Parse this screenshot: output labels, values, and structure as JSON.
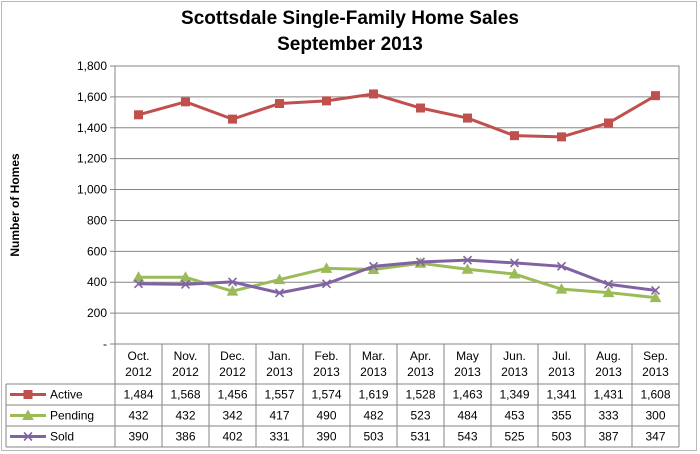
{
  "chart_data": {
    "type": "line",
    "title": "Scottsdale Single-Family Home Sales",
    "subtitle": "September 2013",
    "ylabel": "Number of Homes",
    "xlabel": "",
    "ylim": [
      0,
      1800
    ],
    "yticks": [
      0,
      200,
      400,
      600,
      800,
      1000,
      1200,
      1400,
      1600,
      1800
    ],
    "ytick_labels": [
      "-",
      "200",
      "400",
      "600",
      "800",
      "1,000",
      "1,200",
      "1,400",
      "1,600",
      "1,800"
    ],
    "grid": true,
    "legend": "data-table",
    "categories": [
      {
        "month": "Oct.",
        "year": "2012"
      },
      {
        "month": "Nov.",
        "year": "2012"
      },
      {
        "month": "Dec.",
        "year": "2012"
      },
      {
        "month": "Jan.",
        "year": "2013"
      },
      {
        "month": "Feb.",
        "year": "2013"
      },
      {
        "month": "Mar.",
        "year": "2013"
      },
      {
        "month": "Apr.",
        "year": "2013"
      },
      {
        "month": "May",
        "year": "2013"
      },
      {
        "month": "Jun.",
        "year": "2013"
      },
      {
        "month": "Jul.",
        "year": "2013"
      },
      {
        "month": "Aug.",
        "year": "2013"
      },
      {
        "month": "Sep.",
        "year": "2013"
      }
    ],
    "series": [
      {
        "name": "Active",
        "color": "#c0504d",
        "marker": "square",
        "values": [
          1484,
          1568,
          1456,
          1557,
          1574,
          1619,
          1528,
          1463,
          1349,
          1341,
          1431,
          1608
        ],
        "labels": [
          "1,484",
          "1,568",
          "1,456",
          "1,557",
          "1,574",
          "1,619",
          "1,528",
          "1,463",
          "1,349",
          "1,341",
          "1,431",
          "1,608"
        ]
      },
      {
        "name": "Pending",
        "color": "#9bbb59",
        "marker": "triangle",
        "values": [
          432,
          432,
          342,
          417,
          490,
          482,
          523,
          484,
          453,
          355,
          333,
          300
        ],
        "labels": [
          "432",
          "432",
          "342",
          "417",
          "490",
          "482",
          "523",
          "484",
          "453",
          "355",
          "333",
          "300"
        ]
      },
      {
        "name": "Sold",
        "color": "#8064a2",
        "marker": "x",
        "values": [
          390,
          386,
          402,
          331,
          390,
          503,
          531,
          543,
          525,
          503,
          387,
          347
        ],
        "labels": [
          "390",
          "386",
          "402",
          "331",
          "390",
          "503",
          "531",
          "543",
          "525",
          "503",
          "387",
          "347"
        ]
      }
    ]
  }
}
